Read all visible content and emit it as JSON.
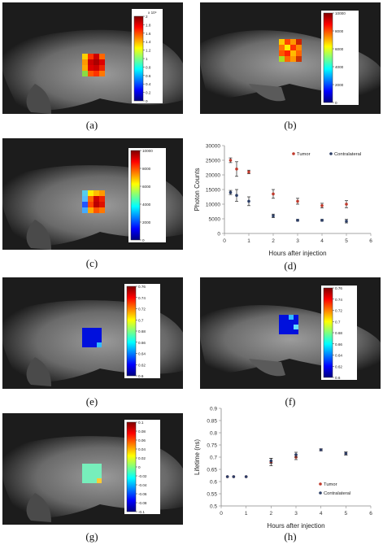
{
  "figure": {
    "captions": [
      "(a)",
      "(b)",
      "(c)",
      "(d)",
      "(e)",
      "(f)",
      "(g)",
      "(h)"
    ],
    "colorbars": {
      "a": {
        "exponent_label": "x 10⁴",
        "ticks": [
          "2",
          "1.8",
          "1.6",
          "1.4",
          "1.2",
          "1",
          "0.8",
          "0.6",
          "0.4",
          "0.2",
          "0"
        ]
      },
      "b": {
        "ticks": [
          "10000",
          "8000",
          "6000",
          "4000",
          "2000",
          "0"
        ]
      },
      "c": {
        "ticks": [
          "10000",
          "8000",
          "6000",
          "4000",
          "2000",
          "0"
        ]
      },
      "e": {
        "ticks": [
          "0.76",
          "0.74",
          "0.72",
          "0.7",
          "0.68",
          "0.66",
          "0.64",
          "0.62",
          "0.6"
        ]
      },
      "f": {
        "ticks": [
          "0.76",
          "0.74",
          "0.72",
          "0.7",
          "0.68",
          "0.66",
          "0.64",
          "0.62",
          "0.6"
        ]
      },
      "g": {
        "ticks": [
          "0.1",
          "0.08",
          "0.06",
          "0.04",
          "0.02",
          "0",
          "-0.02",
          "-0.04",
          "-0.06",
          "-0.08",
          "-0.1"
        ]
      }
    }
  },
  "chart_data": [
    {
      "type": "scatter",
      "title": "",
      "xlabel": "Hours after injection",
      "ylabel": "Photon Counts",
      "xlim": [
        0,
        6
      ],
      "ylim": [
        0,
        30000
      ],
      "xticks": [
        "0",
        "1",
        "2",
        "3",
        "4",
        "5",
        "6"
      ],
      "yticks": [
        "0",
        "5000",
        "10000",
        "15000",
        "20000",
        "25000",
        "30000"
      ],
      "legend": "top-right",
      "series": [
        {
          "name": "Tumor",
          "color": "#c0392b",
          "x": [
            0.25,
            0.5,
            1,
            2,
            3,
            4,
            5
          ],
          "y": [
            25000,
            22000,
            21000,
            13500,
            11000,
            9500,
            10000
          ],
          "err": [
            800,
            2500,
            600,
            1500,
            1000,
            800,
            1200
          ]
        },
        {
          "name": "Contralateral",
          "color": "#2c3e66",
          "x": [
            0.25,
            0.5,
            1,
            2,
            3,
            4,
            5
          ],
          "y": [
            14000,
            13000,
            11000,
            6000,
            4500,
            4500,
            4200
          ],
          "err": [
            700,
            2000,
            1500,
            600,
            300,
            300,
            600
          ]
        }
      ]
    },
    {
      "type": "scatter",
      "title": "",
      "xlabel": "Hours after injection",
      "ylabel": "Lifetime (ns)",
      "xlim": [
        0,
        6
      ],
      "ylim": [
        0.5,
        0.9
      ],
      "xticks": [
        "0",
        "1",
        "2",
        "3",
        "4",
        "5",
        "6"
      ],
      "yticks": [
        "0.5",
        "0.55",
        "0.6",
        "0.65",
        "0.7",
        "0.75",
        "0.8",
        "0.85",
        "0.9"
      ],
      "legend": "bottom-right",
      "series": [
        {
          "name": "Tumor",
          "color": "#c0392b",
          "x": [
            0.25,
            0.5,
            1,
            2,
            3,
            4,
            5
          ],
          "y": [
            0.62,
            0.62,
            0.62,
            0.68,
            0.7,
            0.73,
            0.715
          ],
          "err": [
            0,
            0,
            0,
            0.015,
            0.01,
            0.004,
            0.006
          ]
        },
        {
          "name": "Contralateral",
          "color": "#2c3e66",
          "x": [
            0.25,
            0.5,
            1,
            2,
            3,
            4,
            5
          ],
          "y": [
            0.62,
            0.62,
            0.62,
            0.685,
            0.71,
            0.73,
            0.715
          ],
          "err": [
            0,
            0,
            0,
            0.01,
            0.01,
            0.004,
            0.006
          ]
        }
      ]
    }
  ]
}
